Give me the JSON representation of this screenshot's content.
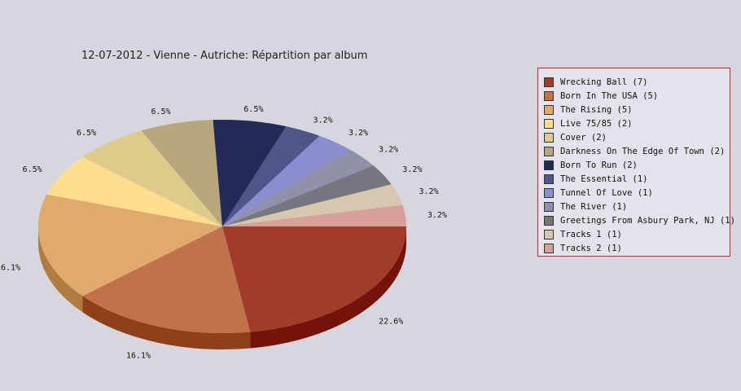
{
  "chart_data": {
    "type": "pie",
    "title": "12-07-2012 - Vienne - Autriche:  Répartition par album",
    "legend_position": "right",
    "slices": [
      {
        "label": "Wrecking Ball (7)",
        "value": 7,
        "pct_label": "22.6%",
        "color": "#a03c28",
        "side": "#741408"
      },
      {
        "label": "Born In The USA (5)",
        "value": 5,
        "pct_label": "16.1%",
        "color": "#c0724a",
        "side": "#8e4018"
      },
      {
        "label": "The Rising (5)",
        "value": 5,
        "pct_label": "16.1%",
        "color": "#e0aa6c",
        "side": "#b07c40"
      },
      {
        "label": "Live 75/85 (2)",
        "value": 2,
        "pct_label": "6.5%",
        "color": "#fedd8e",
        "side": "#c8a858"
      },
      {
        "label": "Cover (2)",
        "value": 2,
        "pct_label": "6.5%",
        "color": "#decb8b",
        "side": "#aa9a5a"
      },
      {
        "label": "Darkness On The Edge Of Town (2)",
        "value": 2,
        "pct_label": "6.5%",
        "color": "#b8a67c",
        "side": "#887650"
      },
      {
        "label": "Born To Run (2)",
        "value": 2,
        "pct_label": "6.5%",
        "color": "#222a58",
        "side": "#101436"
      },
      {
        "label": "The Essential (1)",
        "value": 1,
        "pct_label": "3.2%",
        "color": "#50558a",
        "side": "#303460"
      },
      {
        "label": "Tunnel Of Love (1)",
        "value": 1,
        "pct_label": "3.2%",
        "color": "#8a8ed0",
        "side": "#5a5ea0"
      },
      {
        "label": "The River (1)",
        "value": 1,
        "pct_label": "3.2%",
        "color": "#9090aa",
        "side": "#626278"
      },
      {
        "label": "Greetings From Asbury Park, NJ (1)",
        "value": 1,
        "pct_label": "3.2%",
        "color": "#76767e",
        "side": "#4c4c54"
      },
      {
        "label": "Tracks 1 (1)",
        "value": 1,
        "pct_label": "3.2%",
        "color": "#d6c8ae",
        "side": "#a89880"
      },
      {
        "label": "Tracks 2 (1)",
        "value": 1,
        "pct_label": "3.2%",
        "color": "#d8a098",
        "side": "#a8706a"
      }
    ]
  }
}
